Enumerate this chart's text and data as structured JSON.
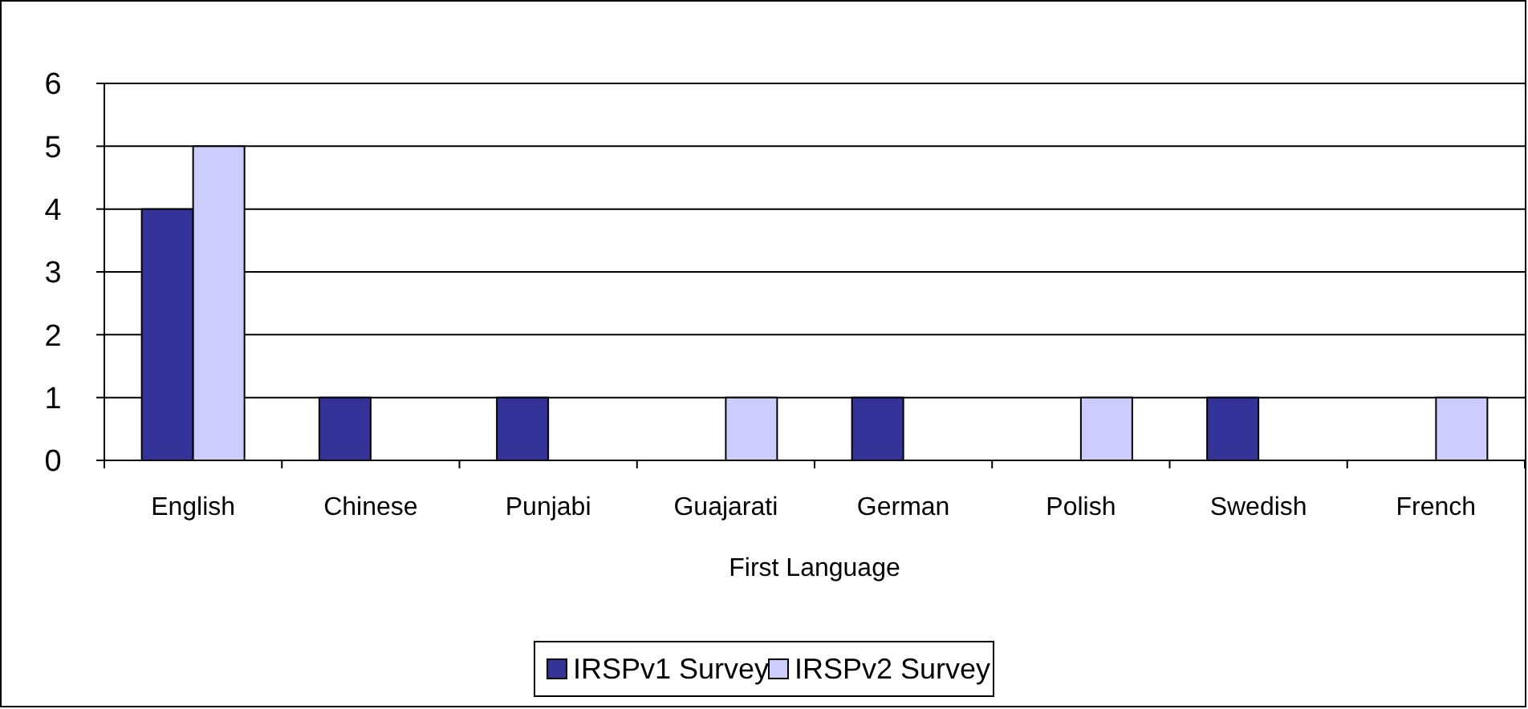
{
  "chart_data": {
    "type": "bar",
    "xlabel": "First Language",
    "categories": [
      "English",
      "Chinese",
      "Punjabi",
      "Guajarati",
      "German",
      "Polish",
      "Swedish",
      "French"
    ],
    "series": [
      {
        "name": "IRSPv1 Survey",
        "color": "#333399",
        "values": [
          4,
          1,
          1,
          0,
          1,
          0,
          1,
          0
        ]
      },
      {
        "name": "IRSPv2 Survey",
        "color": "#ccccff",
        "values": [
          5,
          0,
          0,
          1,
          0,
          1,
          0,
          1
        ]
      }
    ],
    "ylim": [
      0,
      6
    ],
    "yticks": [
      0,
      1,
      2,
      3,
      4,
      5,
      6
    ],
    "grid": "y",
    "legend": "bottom"
  }
}
